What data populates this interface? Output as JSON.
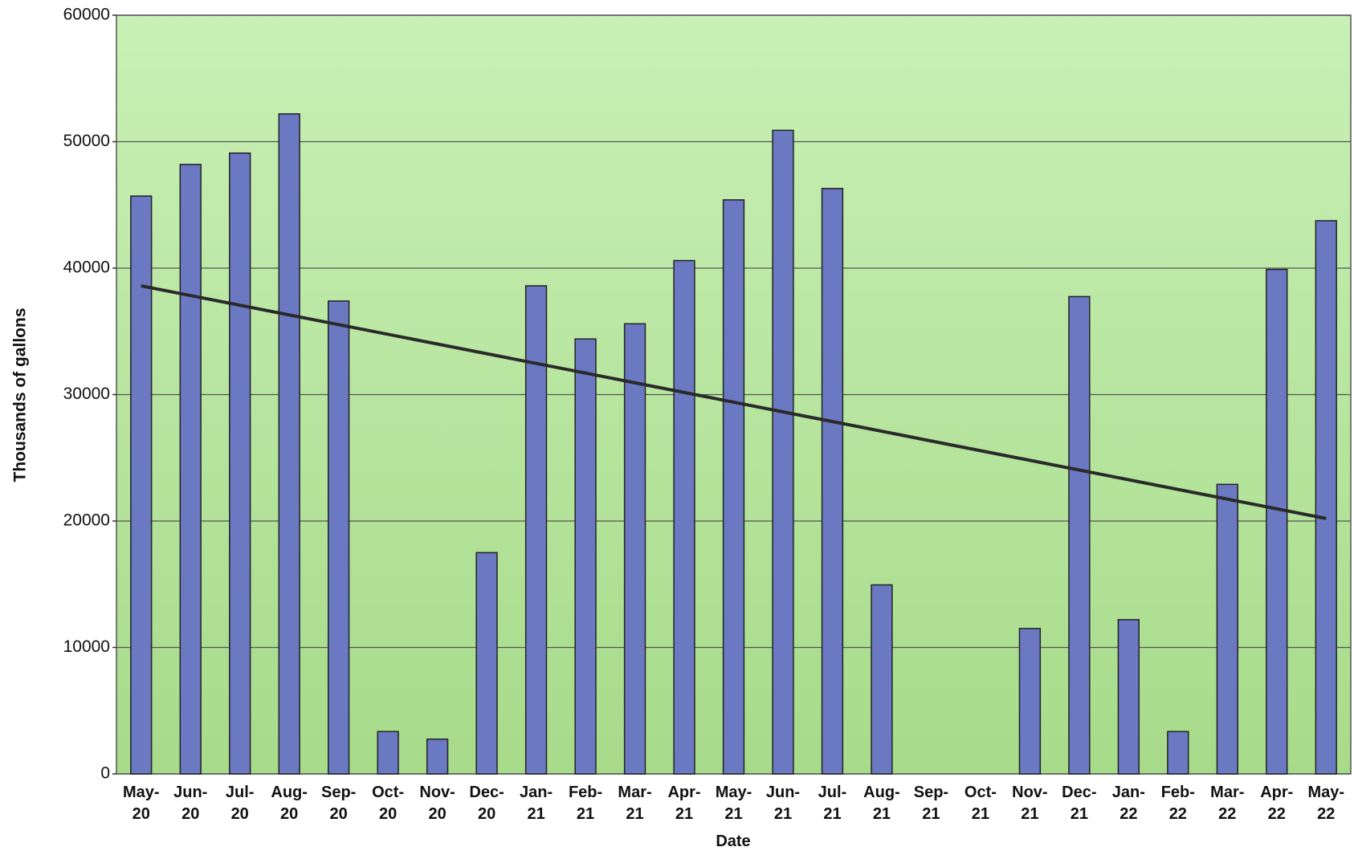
{
  "chart_data": {
    "type": "bar",
    "x_label": "Date",
    "y_label": "Thousands of gallons",
    "categories": [
      "May-\n20",
      "Jun-\n20",
      "Jul-\n20",
      "Aug-\n20",
      "Sep-\n20",
      "Oct-\n20",
      "Nov-\n20",
      "Dec-\n20",
      "Jan-\n21",
      "Feb-\n21",
      "Mar-\n21",
      "Apr-\n21",
      "May-\n21",
      "Jun-\n21",
      "Jul-\n21",
      "Aug-\n21",
      "Sep-\n21",
      "Oct-\n21",
      "Nov-\n21",
      "Dec-\n21",
      "Jan-\n22",
      "Feb-\n22",
      "Mar-\n22",
      "Apr-\n22",
      "May-\n22"
    ],
    "values": [
      45700,
      48200,
      49100,
      52200,
      37400,
      3350,
      2750,
      17500,
      38600,
      34400,
      35600,
      40600,
      45400,
      50900,
      46300,
      14950,
      0,
      0,
      11500,
      37750,
      12200,
      3350,
      22900,
      39900,
      43750
    ],
    "color": "#6b78c2",
    "trend": [
      38600,
      20200
    ],
    "trend_color": "#2a2a2a",
    "ylim": [
      0,
      60000
    ],
    "yticks": [
      0,
      10000,
      20000,
      30000,
      40000,
      50000,
      60000
    ],
    "grid": true
  }
}
